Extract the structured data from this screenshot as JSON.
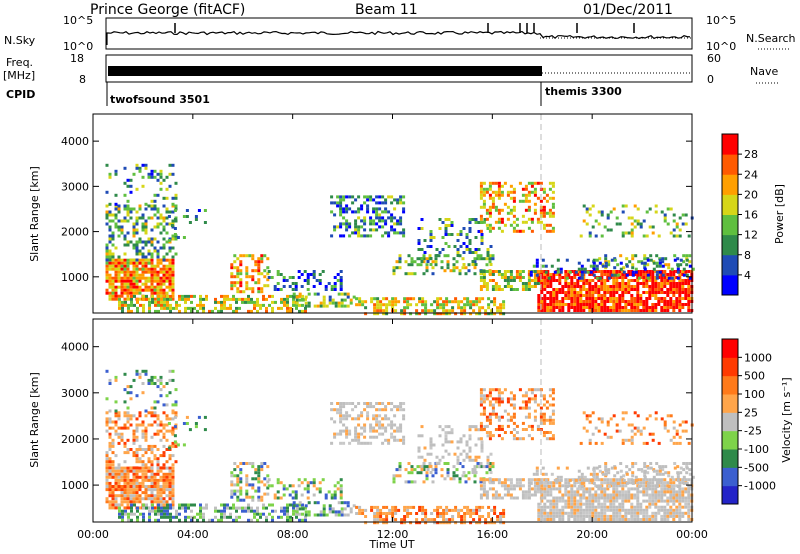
{
  "header": {
    "station": "Prince George (fitACF)",
    "beam": "Beam 11",
    "date": "01/Dec/2011"
  },
  "chart_data": [
    {
      "type": "line",
      "panel": "noise",
      "left_label": "N.Sky",
      "right_label": "N.Search",
      "left_ticks": [
        "10^5",
        "10^0"
      ],
      "right_ticks": [
        "10^5",
        "10^0"
      ],
      "line_style": "solid (N.Sky), dotted (N.Search)"
    },
    {
      "type": "line",
      "panel": "frequency",
      "left_label_line1": "Freq.",
      "left_label_line2": "[MHz]",
      "right_label": "Nave",
      "left_ticks": [
        "18",
        "8"
      ],
      "right_ticks": [
        "60",
        "0"
      ],
      "freq_start_hour": 0.5
    },
    {
      "type": "table",
      "panel": "cpid",
      "label": "CPID",
      "segments": [
        {
          "name": "twofsound 3501",
          "start_hour": 0.5
        },
        {
          "name": "themis 3300",
          "start_hour": 18.0
        }
      ]
    },
    {
      "type": "heatmap",
      "panel": "power",
      "ylabel": "Slant Range [km]",
      "yticks": [
        1000,
        2000,
        3000,
        4000
      ],
      "ylim": [
        200,
        4600
      ],
      "colorbar_label": "Power [dB]",
      "colorbar_ticks": [
        "28",
        "24",
        "20",
        "16",
        "12",
        "8",
        "4"
      ],
      "colorbar_range": [
        0,
        32
      ],
      "colorbar_colors": [
        "#0000ff",
        "#1f4bb5",
        "#2f8a4a",
        "#5fbf3f",
        "#d6d618",
        "#ff9f00",
        "#ff5a00",
        "#ff0000"
      ]
    },
    {
      "type": "heatmap",
      "panel": "velocity",
      "ylabel": "Slant Range [km]",
      "yticks": [
        1000,
        2000,
        3000,
        4000
      ],
      "ylim": [
        200,
        4600
      ],
      "colorbar_label": "Velocity [m s⁻¹]",
      "colorbar_ticks": [
        "1000",
        "500",
        "100",
        "25",
        "-25",
        "-100",
        "-500",
        "-1000"
      ],
      "colorbar_colors": [
        "#2424c8",
        "#3b5fd0",
        "#2f8a4a",
        "#7ed34a",
        "#bfbfbf",
        "#ffa54a",
        "#ff7a1a",
        "#ff3a00",
        "#ff0000"
      ]
    }
  ],
  "xaxis": {
    "label": "Time UT",
    "ticks": [
      "00:00",
      "04:00",
      "08:00",
      "12:00",
      "16:00",
      "20:00",
      "00:00"
    ],
    "xlim_hours": [
      0,
      24
    ]
  }
}
